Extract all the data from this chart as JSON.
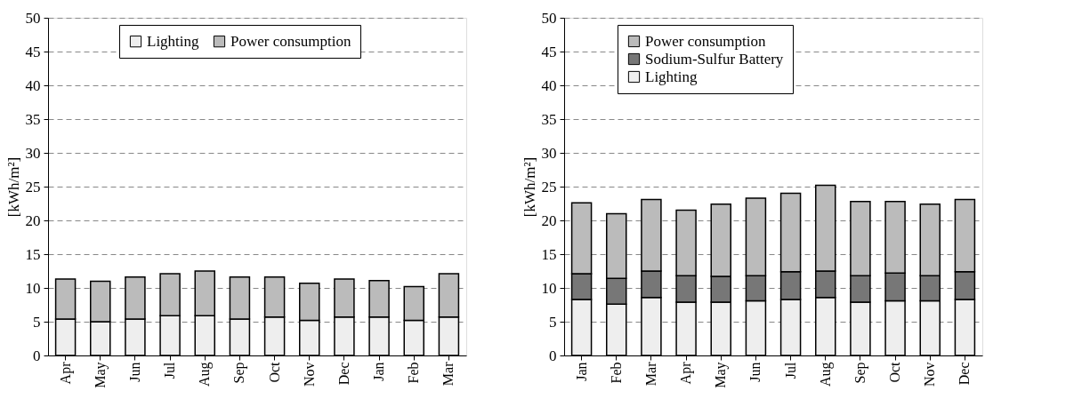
{
  "chart_data": [
    {
      "type": "bar",
      "stacked": true,
      "ylabel": "[kWh/m²]",
      "categories": [
        "Apr",
        "May",
        "Jun",
        "Jul",
        "Aug",
        "Sep",
        "Oct",
        "Nov",
        "Dec",
        "Jan",
        "Feb",
        "Mar"
      ],
      "series": [
        {
          "name": "Lighting",
          "color": "#eeeeee",
          "values": [
            5.4,
            5.0,
            5.4,
            5.9,
            5.9,
            5.4,
            5.7,
            5.2,
            5.7,
            5.7,
            5.2,
            5.7
          ]
        },
        {
          "name": "Power consumption",
          "color": "#bbbbbb",
          "values": [
            5.9,
            6.0,
            6.2,
            6.2,
            6.6,
            6.2,
            5.9,
            5.5,
            5.6,
            5.4,
            5.0,
            6.4
          ]
        }
      ],
      "ylim": [
        0,
        50
      ],
      "yticks": [
        0,
        5,
        10,
        15,
        20,
        25,
        30,
        35,
        40,
        45,
        50
      ],
      "grid": "y",
      "legend": "top"
    },
    {
      "type": "bar",
      "stacked": true,
      "ylabel": "[kWh/m²]",
      "categories": [
        "Jan",
        "Feb",
        "Mar",
        "Apr",
        "May",
        "Jun",
        "Jul",
        "Aug",
        "Sep",
        "Oct",
        "Nov",
        "Dec"
      ],
      "series": [
        {
          "name": "Lighting",
          "color": "#eeeeee",
          "values": [
            8.3,
            7.6,
            8.6,
            7.9,
            7.9,
            8.1,
            8.3,
            8.6,
            7.9,
            8.1,
            8.1,
            8.3
          ]
        },
        {
          "name": "Sodium-Sulfur Battery",
          "color": "#777777",
          "values": [
            3.8,
            3.8,
            3.9,
            3.9,
            3.8,
            3.7,
            4.1,
            3.9,
            3.9,
            4.1,
            3.7,
            4.1
          ]
        },
        {
          "name": "Power consumption",
          "color": "#bbbbbb",
          "values": [
            10.5,
            9.6,
            10.6,
            9.7,
            10.7,
            11.5,
            11.6,
            12.7,
            11.0,
            10.6,
            10.6,
            10.7
          ]
        }
      ],
      "ylim": [
        0,
        50
      ],
      "yticks": [
        0,
        5,
        10,
        15,
        20,
        25,
        30,
        35,
        40,
        45,
        50
      ],
      "grid": "y",
      "legend": "top"
    }
  ]
}
